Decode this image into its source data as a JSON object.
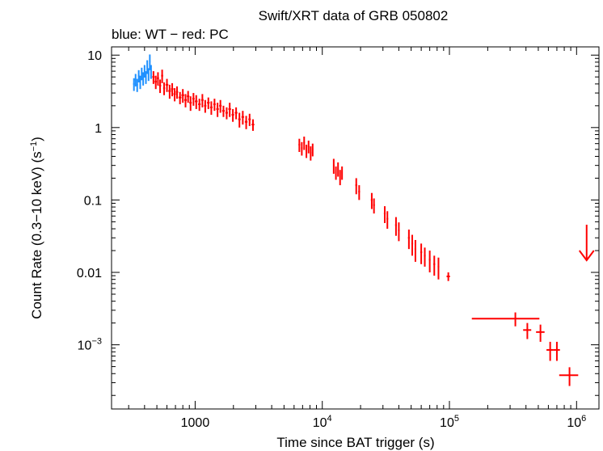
{
  "chart_data": {
    "type": "scatter",
    "title": "Swift/XRT data of GRB 050802",
    "subtitle": "blue: WT − red: PC",
    "xlabel": "Time since BAT trigger (s)",
    "ylabel_main": "Count Rate (0.3−10 keV) (s",
    "ylabel_sup": "−1",
    "ylabel_end": ")",
    "x_scale": "log",
    "y_scale": "log",
    "xlim": [
      220,
      1500000
    ],
    "ylim": [
      0.00013,
      13
    ],
    "x_ticks": [
      {
        "value": 1000,
        "base": "1000",
        "exp": ""
      },
      {
        "value": 10000,
        "base": "10",
        "exp": "4"
      },
      {
        "value": 100000,
        "base": "10",
        "exp": "5"
      },
      {
        "value": 1000000,
        "base": "10",
        "exp": "6"
      }
    ],
    "y_ticks": [
      {
        "value": 10,
        "base": "10",
        "exp": ""
      },
      {
        "value": 1,
        "base": "1",
        "exp": ""
      },
      {
        "value": 0.1,
        "base": "0.1",
        "exp": ""
      },
      {
        "value": 0.01,
        "base": "0.01",
        "exp": ""
      },
      {
        "value": 0.001,
        "base": "10",
        "exp": "−3"
      }
    ],
    "colors": {
      "WT": "#1e90ff",
      "PC": "#ff0000"
    },
    "series": [
      {
        "name": "WT",
        "color": "#1e90ff",
        "points": [
          [
            330,
            4.0,
            5,
            0.8
          ],
          [
            340,
            4.6,
            5,
            0.9
          ],
          [
            350,
            3.9,
            5,
            0.8
          ],
          [
            360,
            5.2,
            5,
            1.0
          ],
          [
            370,
            4.3,
            5,
            0.9
          ],
          [
            380,
            5.6,
            5,
            1.1
          ],
          [
            390,
            4.8,
            5,
            1.0
          ],
          [
            400,
            6.1,
            5,
            1.2
          ],
          [
            410,
            5.0,
            5,
            1.0
          ],
          [
            420,
            7.0,
            5,
            1.5
          ],
          [
            430,
            5.5,
            5,
            1.1
          ],
          [
            440,
            8.2,
            5,
            2.0
          ],
          [
            450,
            6.0,
            5,
            1.3
          ]
        ]
      },
      {
        "name": "PC",
        "color": "#ff0000",
        "points": [
          [
            470,
            5.0,
            10,
            1.0
          ],
          [
            490,
            4.3,
            10,
            0.9
          ],
          [
            510,
            4.8,
            10,
            1.0
          ],
          [
            530,
            3.8,
            10,
            0.8
          ],
          [
            550,
            5.2,
            10,
            1.1
          ],
          [
            570,
            3.5,
            10,
            0.7
          ],
          [
            600,
            3.9,
            15,
            0.8
          ],
          [
            630,
            3.2,
            15,
            0.7
          ],
          [
            660,
            3.4,
            15,
            0.7
          ],
          [
            690,
            2.9,
            15,
            0.6
          ],
          [
            720,
            3.1,
            15,
            0.6
          ],
          [
            760,
            2.6,
            20,
            0.5
          ],
          [
            800,
            2.8,
            20,
            0.6
          ],
          [
            840,
            2.4,
            20,
            0.5
          ],
          [
            880,
            2.7,
            20,
            0.5
          ],
          [
            920,
            2.2,
            20,
            0.5
          ],
          [
            970,
            2.5,
            20,
            0.5
          ],
          [
            1020,
            2.3,
            25,
            0.5
          ],
          [
            1080,
            2.1,
            25,
            0.4
          ],
          [
            1140,
            2.4,
            25,
            0.5
          ],
          [
            1200,
            2.0,
            25,
            0.4
          ],
          [
            1270,
            2.2,
            30,
            0.4
          ],
          [
            1340,
            1.9,
            30,
            0.4
          ],
          [
            1420,
            2.1,
            30,
            0.4
          ],
          [
            1500,
            1.8,
            35,
            0.4
          ],
          [
            1580,
            2.0,
            35,
            0.4
          ],
          [
            1670,
            1.7,
            40,
            0.3
          ],
          [
            1770,
            1.6,
            40,
            0.3
          ],
          [
            1870,
            1.8,
            45,
            0.4
          ],
          [
            1980,
            1.5,
            45,
            0.3
          ],
          [
            2100,
            1.6,
            50,
            0.3
          ],
          [
            2230,
            1.3,
            50,
            0.3
          ],
          [
            2370,
            1.4,
            55,
            0.3
          ],
          [
            2520,
            1.2,
            60,
            0.25
          ],
          [
            2680,
            1.3,
            60,
            0.25
          ],
          [
            2850,
            1.1,
            70,
            0.2
          ],
          [
            6600,
            0.58,
            100,
            0.12
          ],
          [
            6900,
            0.52,
            100,
            0.11
          ],
          [
            7200,
            0.62,
            100,
            0.13
          ],
          [
            7500,
            0.48,
            100,
            0.1
          ],
          [
            7800,
            0.55,
            100,
            0.11
          ],
          [
            8100,
            0.45,
            100,
            0.1
          ],
          [
            8400,
            0.5,
            100,
            0.1
          ],
          [
            12300,
            0.3,
            150,
            0.07
          ],
          [
            12800,
            0.24,
            150,
            0.05
          ],
          [
            13300,
            0.27,
            150,
            0.06
          ],
          [
            13800,
            0.21,
            150,
            0.05
          ],
          [
            14300,
            0.24,
            150,
            0.05
          ],
          [
            18500,
            0.16,
            300,
            0.04
          ],
          [
            19500,
            0.13,
            300,
            0.03
          ],
          [
            24500,
            0.1,
            400,
            0.025
          ],
          [
            25500,
            0.085,
            400,
            0.02
          ],
          [
            31000,
            0.065,
            500,
            0.017
          ],
          [
            32500,
            0.055,
            500,
            0.015
          ],
          [
            38000,
            0.045,
            600,
            0.013
          ],
          [
            40000,
            0.038,
            600,
            0.011
          ],
          [
            48000,
            0.03,
            800,
            0.009
          ],
          [
            51000,
            0.025,
            800,
            0.008
          ],
          [
            54000,
            0.021,
            800,
            0.007
          ],
          [
            60000,
            0.019,
            1000,
            0.006
          ],
          [
            64000,
            0.017,
            1000,
            0.005
          ],
          [
            70000,
            0.015,
            1000,
            0.005
          ],
          [
            76000,
            0.013,
            1200,
            0.004
          ],
          [
            82000,
            0.012,
            1200,
            0.004
          ],
          [
            98000,
            0.0088,
            3000,
            0.0012
          ],
          [
            330000,
            0.0023,
            180000,
            0.0005
          ],
          [
            410000,
            0.0016,
            30000,
            0.0004
          ],
          [
            520000,
            0.0015,
            40000,
            0.0004
          ],
          [
            620000,
            0.00085,
            40000,
            0.00025
          ],
          [
            700000,
            0.00085,
            40000,
            0.00025
          ],
          [
            880000,
            0.00038,
            150000,
            0.00011
          ]
        ]
      }
    ],
    "upper_limits": [
      {
        "x": 1200000,
        "y": 0.019,
        "color": "#ff0000"
      }
    ]
  }
}
